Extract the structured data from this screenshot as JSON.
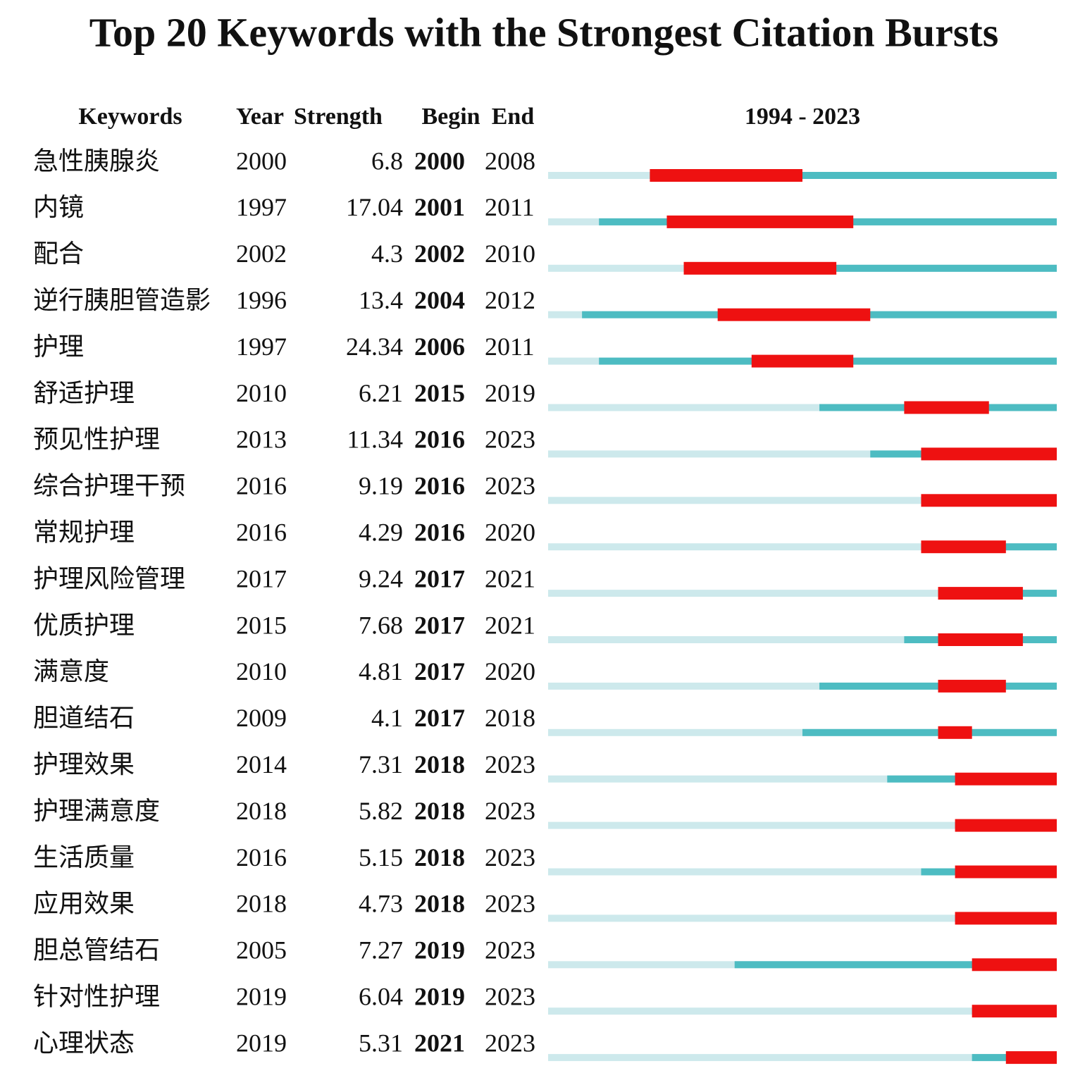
{
  "chart_data": {
    "type": "burst",
    "title": "Top 20 Keywords with the Strongest Citation Bursts",
    "headers": [
      "Keywords",
      "Year",
      "Strength",
      "Begin",
      "End"
    ],
    "range_label": "1994 - 2023",
    "timeline": {
      "start": 1994,
      "end": 2023
    },
    "colors": {
      "base": "#cde9ec",
      "active": "#4dbcc2",
      "burst": "#ee1111"
    },
    "rows": [
      {
        "keyword": "急性胰腺炎",
        "year": 2000,
        "strength": 6.8,
        "begin": 2000,
        "end": 2008
      },
      {
        "keyword": "内镜",
        "year": 1997,
        "strength": 17.04,
        "begin": 2001,
        "end": 2011
      },
      {
        "keyword": "配合",
        "year": 2002,
        "strength": 4.3,
        "begin": 2002,
        "end": 2010
      },
      {
        "keyword": "逆行胰胆管造影",
        "year": 1996,
        "strength": 13.4,
        "begin": 2004,
        "end": 2012
      },
      {
        "keyword": "护理",
        "year": 1997,
        "strength": 24.34,
        "begin": 2006,
        "end": 2011
      },
      {
        "keyword": "舒适护理",
        "year": 2010,
        "strength": 6.21,
        "begin": 2015,
        "end": 2019
      },
      {
        "keyword": "预见性护理",
        "year": 2013,
        "strength": 11.34,
        "begin": 2016,
        "end": 2023
      },
      {
        "keyword": "综合护理干预",
        "year": 2016,
        "strength": 9.19,
        "begin": 2016,
        "end": 2023
      },
      {
        "keyword": "常规护理",
        "year": 2016,
        "strength": 4.29,
        "begin": 2016,
        "end": 2020
      },
      {
        "keyword": "护理风险管理",
        "year": 2017,
        "strength": 9.24,
        "begin": 2017,
        "end": 2021
      },
      {
        "keyword": "优质护理",
        "year": 2015,
        "strength": 7.68,
        "begin": 2017,
        "end": 2021
      },
      {
        "keyword": "满意度",
        "year": 2010,
        "strength": 4.81,
        "begin": 2017,
        "end": 2020
      },
      {
        "keyword": "胆道结石",
        "year": 2009,
        "strength": 4.1,
        "begin": 2017,
        "end": 2018
      },
      {
        "keyword": "护理效果",
        "year": 2014,
        "strength": 7.31,
        "begin": 2018,
        "end": 2023
      },
      {
        "keyword": "护理满意度",
        "year": 2018,
        "strength": 5.82,
        "begin": 2018,
        "end": 2023
      },
      {
        "keyword": "生活质量",
        "year": 2016,
        "strength": 5.15,
        "begin": 2018,
        "end": 2023
      },
      {
        "keyword": "应用效果",
        "year": 2018,
        "strength": 4.73,
        "begin": 2018,
        "end": 2023
      },
      {
        "keyword": "胆总管结石",
        "year": 2005,
        "strength": 7.27,
        "begin": 2019,
        "end": 2023
      },
      {
        "keyword": "针对性护理",
        "year": 2019,
        "strength": 6.04,
        "begin": 2019,
        "end": 2023
      },
      {
        "keyword": "心理状态",
        "year": 2019,
        "strength": 5.31,
        "begin": 2021,
        "end": 2023
      }
    ]
  }
}
